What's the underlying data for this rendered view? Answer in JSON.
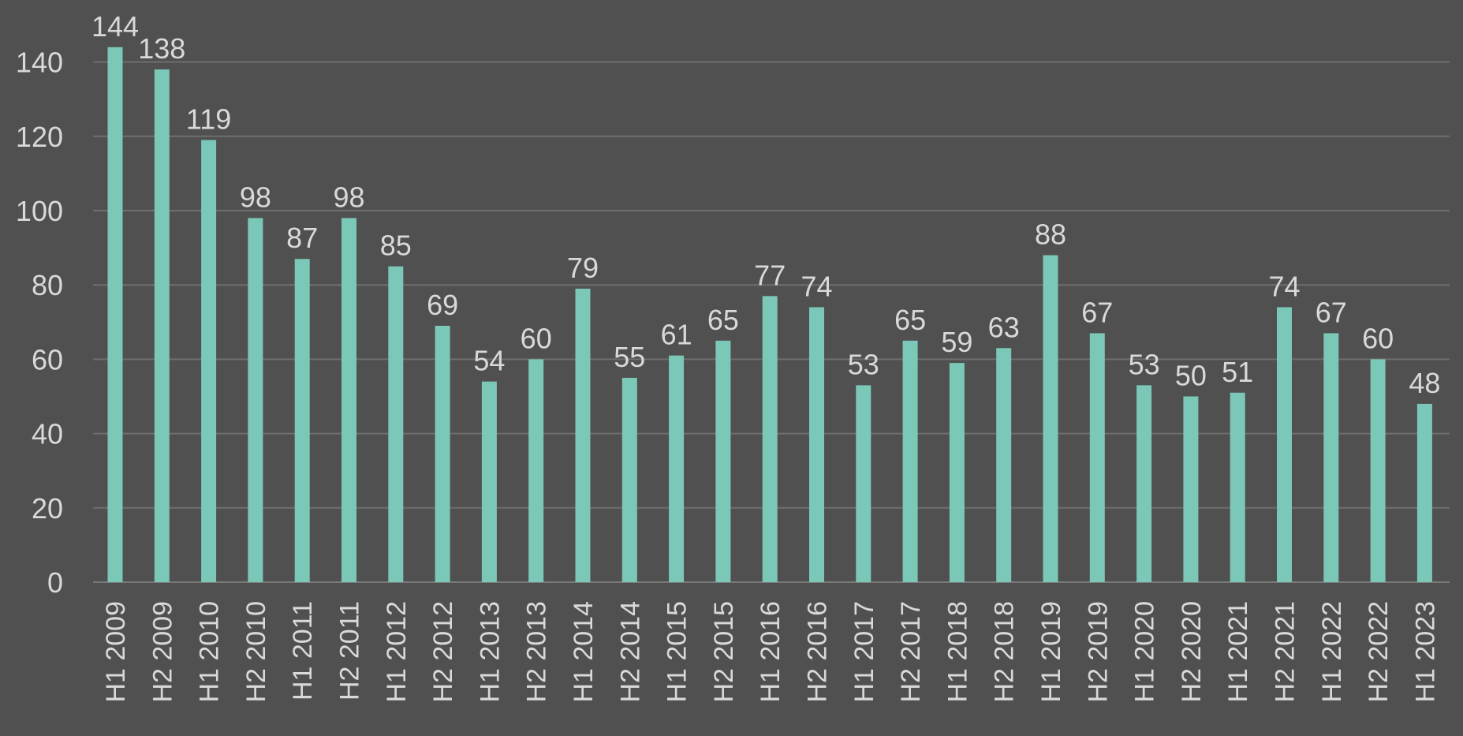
{
  "chart_data": {
    "type": "bar",
    "title": "",
    "xlabel": "",
    "ylabel": "",
    "ylim": [
      0,
      145
    ],
    "yticks": [
      0,
      20,
      40,
      60,
      80,
      100,
      120,
      140
    ],
    "grid": true,
    "legend": "none",
    "bar_color": "#7cc8b8",
    "background_color": "#505050",
    "text_color": "#d9d9d9",
    "categories": [
      "H1 2009",
      "H2 2009",
      "H1 2010",
      "H2 2010",
      "H1 2011",
      "H2 2011",
      "H1 2012",
      "H2 2012",
      "H1 2013",
      "H2 2013",
      "H1 2014",
      "H2 2014",
      "H1 2015",
      "H2 2015",
      "H1 2016",
      "H2 2016",
      "H1 2017",
      "H2 2017",
      "H1 2018",
      "H2 2018",
      "H1 2019",
      "H2 2019",
      "H1 2020",
      "H2 2020",
      "H1 2021",
      "H2 2021",
      "H1 2022",
      "H2 2022",
      "H1 2023"
    ],
    "values": [
      144,
      138,
      119,
      98,
      87,
      98,
      85,
      69,
      54,
      60,
      79,
      55,
      61,
      65,
      77,
      74,
      53,
      65,
      59,
      63,
      88,
      67,
      53,
      50,
      51,
      74,
      67,
      60,
      48
    ]
  }
}
